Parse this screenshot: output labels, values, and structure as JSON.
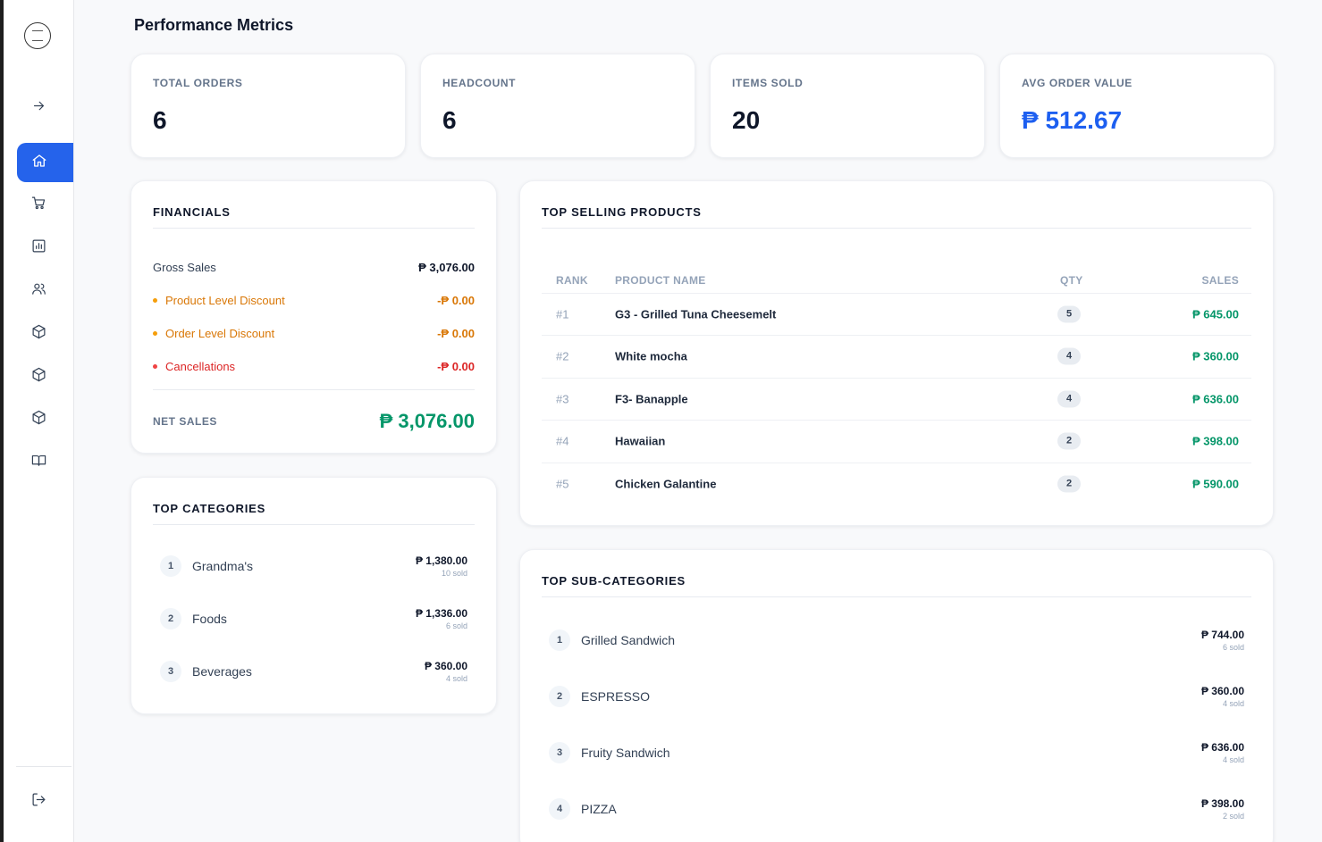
{
  "page": {
    "title": "Performance Metrics"
  },
  "sidebar": {
    "items": [
      {
        "name": "expand",
        "icon": "arrow-right-icon"
      },
      {
        "name": "home",
        "icon": "home-icon",
        "active": true
      },
      {
        "name": "orders",
        "icon": "cart-icon"
      },
      {
        "name": "reports",
        "icon": "bar-chart-icon"
      },
      {
        "name": "users",
        "icon": "users-icon"
      },
      {
        "name": "products",
        "icon": "box-icon"
      },
      {
        "name": "inventory",
        "icon": "box-icon"
      },
      {
        "name": "stock",
        "icon": "box-icon"
      },
      {
        "name": "guide",
        "icon": "book-icon"
      },
      {
        "name": "logout",
        "icon": "logout-icon"
      }
    ]
  },
  "kpis": [
    {
      "label": "TOTAL ORDERS",
      "value": "6"
    },
    {
      "label": "HEADCOUNT",
      "value": "6"
    },
    {
      "label": "ITEMS SOLD",
      "value": "20"
    },
    {
      "label": "AVG ORDER VALUE",
      "value": "₱ 512.67",
      "accent": "#1d5ff0"
    }
  ],
  "financials": {
    "title": "FINANCIALS",
    "gross": {
      "label": "Gross Sales",
      "value": "₱ 3,076.00"
    },
    "product_discount": {
      "label": "Product Level Discount",
      "value": "-₱ 0.00",
      "color": "#d97706"
    },
    "order_discount": {
      "label": "Order Level Discount",
      "value": "-₱ 0.00",
      "color": "#d97706"
    },
    "cancellations": {
      "label": "Cancellations",
      "value": "-₱ 0.00",
      "color": "#dc2626"
    },
    "net": {
      "label": "NET SALES",
      "value": "₱ 3,076.00",
      "color": "#059669"
    }
  },
  "top_categories": {
    "title": "TOP CATEGORIES",
    "items": [
      {
        "rank": "1",
        "name": "Grandma's",
        "amount": "₱ 1,380.00",
        "sold": "10 sold"
      },
      {
        "rank": "2",
        "name": "Foods",
        "amount": "₱ 1,336.00",
        "sold": "6 sold"
      },
      {
        "rank": "3",
        "name": "Beverages",
        "amount": "₱ 360.00",
        "sold": "4 sold"
      }
    ]
  },
  "top_products": {
    "title": "TOP SELLING PRODUCTS",
    "columns": {
      "rank": "RANK",
      "name": "PRODUCT NAME",
      "qty": "QTY",
      "sales": "SALES"
    },
    "rows": [
      {
        "rank": "#1",
        "name": "G3 - Grilled Tuna Cheesemelt",
        "qty": "5",
        "sales": "₱ 645.00"
      },
      {
        "rank": "#2",
        "name": "White mocha",
        "qty": "4",
        "sales": "₱ 360.00"
      },
      {
        "rank": "#3",
        "name": "F3- Banapple",
        "qty": "4",
        "sales": "₱ 636.00"
      },
      {
        "rank": "#4",
        "name": "Hawaiian",
        "qty": "2",
        "sales": "₱ 398.00"
      },
      {
        "rank": "#5",
        "name": "Chicken Galantine",
        "qty": "2",
        "sales": "₱ 590.00"
      }
    ]
  },
  "top_subcategories": {
    "title": "TOP SUB-CATEGORIES",
    "items": [
      {
        "rank": "1",
        "name": "Grilled Sandwich",
        "amount": "₱ 744.00",
        "sold": "6 sold"
      },
      {
        "rank": "2",
        "name": "ESPRESSO",
        "amount": "₱ 360.00",
        "sold": "4 sold"
      },
      {
        "rank": "3",
        "name": "Fruity Sandwich",
        "amount": "₱ 636.00",
        "sold": "4 sold"
      },
      {
        "rank": "4",
        "name": "PIZZA",
        "amount": "₱ 398.00",
        "sold": "2 sold"
      }
    ]
  },
  "colors": {
    "primary": "#2563eb",
    "positive": "#059669",
    "warning": "#d97706",
    "danger": "#dc2626"
  }
}
